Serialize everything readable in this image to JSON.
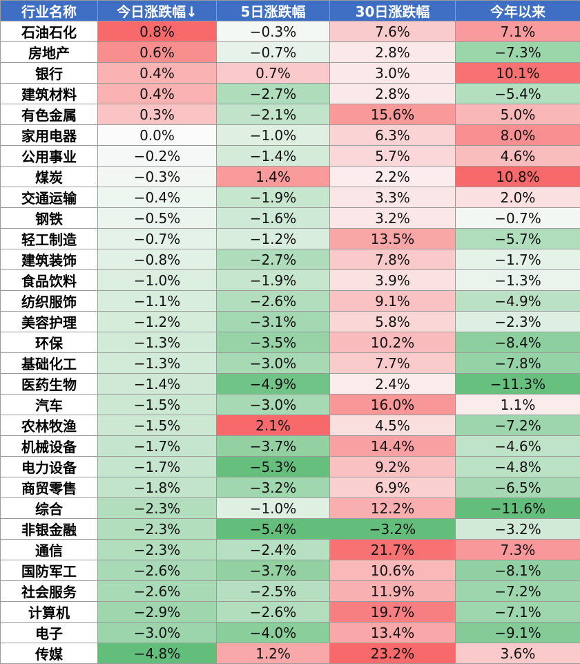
{
  "table": {
    "headers": [
      "行业名称",
      "今日涨跌幅↓",
      "5日涨跌幅",
      "30日涨跌幅",
      "今年以来"
    ],
    "rows": [
      {
        "name": "石油石化",
        "today": 0.8,
        "d5": -0.3,
        "d30": 7.6,
        "ytd": 7.1
      },
      {
        "name": "房地产",
        "today": 0.6,
        "d5": -0.7,
        "d30": 2.8,
        "ytd": -7.3
      },
      {
        "name": "银行",
        "today": 0.4,
        "d5": 0.7,
        "d30": 3.0,
        "ytd": 10.1
      },
      {
        "name": "建筑材料",
        "today": 0.4,
        "d5": -2.7,
        "d30": 2.8,
        "ytd": -5.4
      },
      {
        "name": "有色金属",
        "today": 0.3,
        "d5": -2.1,
        "d30": 15.6,
        "ytd": 5.0
      },
      {
        "name": "家用电器",
        "today": 0.0,
        "d5": -1.0,
        "d30": 6.3,
        "ytd": 8.0
      },
      {
        "name": "公用事业",
        "today": -0.2,
        "d5": -1.4,
        "d30": 5.7,
        "ytd": 4.6
      },
      {
        "name": "煤炭",
        "today": -0.3,
        "d5": 1.4,
        "d30": 2.2,
        "ytd": 10.8
      },
      {
        "name": "交通运输",
        "today": -0.4,
        "d5": -1.9,
        "d30": 3.3,
        "ytd": 2.0
      },
      {
        "name": "钢铁",
        "today": -0.5,
        "d5": -1.6,
        "d30": 3.2,
        "ytd": -0.7
      },
      {
        "name": "轻工制造",
        "today": -0.7,
        "d5": -1.2,
        "d30": 13.5,
        "ytd": -5.7
      },
      {
        "name": "建筑装饰",
        "today": -0.8,
        "d5": -2.7,
        "d30": 7.8,
        "ytd": -1.7
      },
      {
        "name": "食品饮料",
        "today": -1.0,
        "d5": -1.9,
        "d30": 3.9,
        "ytd": -1.3
      },
      {
        "name": "纺织服饰",
        "today": -1.1,
        "d5": -2.6,
        "d30": 9.1,
        "ytd": -4.9
      },
      {
        "name": "美容护理",
        "today": -1.2,
        "d5": -3.1,
        "d30": 5.8,
        "ytd": -2.3
      },
      {
        "name": "环保",
        "today": -1.3,
        "d5": -3.5,
        "d30": 10.2,
        "ytd": -8.4
      },
      {
        "name": "基础化工",
        "today": -1.3,
        "d5": -3.0,
        "d30": 7.7,
        "ytd": -7.8
      },
      {
        "name": "医药生物",
        "today": -1.4,
        "d5": -4.9,
        "d30": 2.4,
        "ytd": -11.3
      },
      {
        "name": "汽车",
        "today": -1.5,
        "d5": -3.0,
        "d30": 16.0,
        "ytd": 1.1
      },
      {
        "name": "农林牧渔",
        "today": -1.5,
        "d5": 2.1,
        "d30": 4.5,
        "ytd": -7.2
      },
      {
        "name": "机械设备",
        "today": -1.7,
        "d5": -3.7,
        "d30": 14.4,
        "ytd": -4.6
      },
      {
        "name": "电力设备",
        "today": -1.7,
        "d5": -5.3,
        "d30": 9.2,
        "ytd": -4.8
      },
      {
        "name": "商贸零售",
        "today": -1.8,
        "d5": -3.2,
        "d30": 6.9,
        "ytd": -6.5
      },
      {
        "name": "综合",
        "today": -2.3,
        "d5": -1.0,
        "d30": 12.2,
        "ytd": -11.6
      },
      {
        "name": "非银金融",
        "today": -2.3,
        "d5": -5.4,
        "d30": -3.2,
        "ytd": -3.2
      },
      {
        "name": "通信",
        "today": -2.3,
        "d5": -2.4,
        "d30": 21.7,
        "ytd": 7.3
      },
      {
        "name": "国防军工",
        "today": -2.6,
        "d5": -3.7,
        "d30": 10.6,
        "ytd": -8.1
      },
      {
        "name": "社会服务",
        "today": -2.6,
        "d5": -2.5,
        "d30": 11.9,
        "ytd": -7.2
      },
      {
        "name": "计算机",
        "today": -2.9,
        "d5": -2.6,
        "d30": 19.7,
        "ytd": -7.1
      },
      {
        "name": "电子",
        "today": -3.0,
        "d5": -4.0,
        "d30": 13.4,
        "ytd": -9.1
      },
      {
        "name": "传媒",
        "today": -4.8,
        "d5": 1.2,
        "d30": 23.2,
        "ytd": 3.6
      }
    ]
  },
  "colors": {
    "header_bg": "#3f6fc4",
    "neutral": "#fbfbfb",
    "positive_max": "#f8696b",
    "negative_max": "#63be7b"
  }
}
